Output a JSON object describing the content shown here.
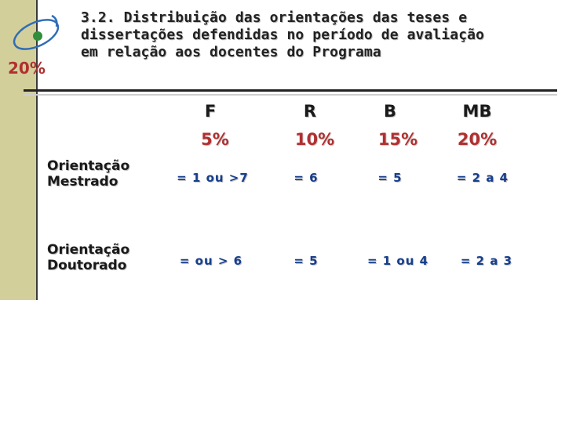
{
  "header": {
    "weight": "20%",
    "title_lines": [
      "3.2. Distribuição das orientações das teses e",
      "dissertações defendidas no período de avaliação",
      "em relação aos docentes do Programa"
    ]
  },
  "columns": [
    {
      "grade": "F",
      "percent": "5%"
    },
    {
      "grade": "R",
      "percent": "10%"
    },
    {
      "grade": "B",
      "percent": "15%"
    },
    {
      "grade": "MB",
      "percent": "20%"
    }
  ],
  "rows": [
    {
      "label_lines": [
        "Orientação",
        "Mestrado"
      ],
      "cells": [
        "= 1 ou >7",
        "= 6",
        "= 5",
        "= 2 a 4"
      ]
    },
    {
      "label_lines": [
        "Orientação",
        "Doutorado"
      ],
      "cells": [
        "= ou > 6",
        "= 5",
        "= 1 ou 4",
        "= 2 a 3"
      ]
    }
  ],
  "colors": {
    "accent_red": "#b03030",
    "value_blue": "#163e8c",
    "sidebar": "#d3cf9b"
  },
  "logo_icon": "orbit-logo-icon"
}
